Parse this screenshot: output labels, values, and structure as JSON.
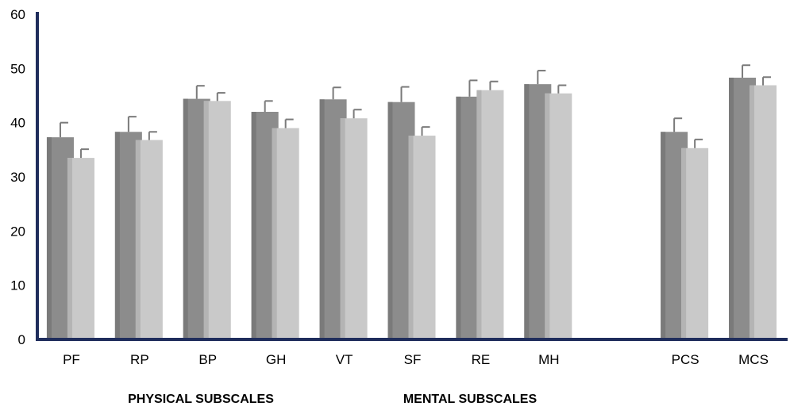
{
  "chart_data": {
    "type": "bar",
    "categories": [
      "PF",
      "RP",
      "BP",
      "GH",
      "VT",
      "SF",
      "RE",
      "MH",
      "",
      "PCS",
      "MCS"
    ],
    "series": [
      {
        "values": [
          37.3,
          38.3,
          44.4,
          42.0,
          44.3,
          43.8,
          44.8,
          47.1,
          null,
          38.3,
          48.3
        ],
        "errors": [
          2.7,
          2.8,
          2.4,
          2.0,
          2.2,
          2.8,
          3.0,
          2.5,
          null,
          2.5,
          2.3
        ],
        "color": "#8c8c8c"
      },
      {
        "values": [
          33.5,
          36.8,
          44.0,
          39.0,
          40.8,
          37.6,
          46.0,
          45.4,
          null,
          35.3,
          46.9
        ],
        "errors": [
          1.6,
          1.5,
          1.5,
          1.6,
          1.6,
          1.6,
          1.6,
          1.5,
          null,
          1.6,
          1.5
        ],
        "color": "#c9c9c9"
      }
    ],
    "ylim": [
      0,
      60
    ],
    "yticks": [
      "0",
      "10",
      "20",
      "30",
      "40",
      "50",
      "60"
    ],
    "group_labels": [
      "PHYSICAL SUBSCALES",
      "MENTAL SUBSCALES"
    ],
    "axis_color": "#1f2d5c",
    "grid": false
  }
}
